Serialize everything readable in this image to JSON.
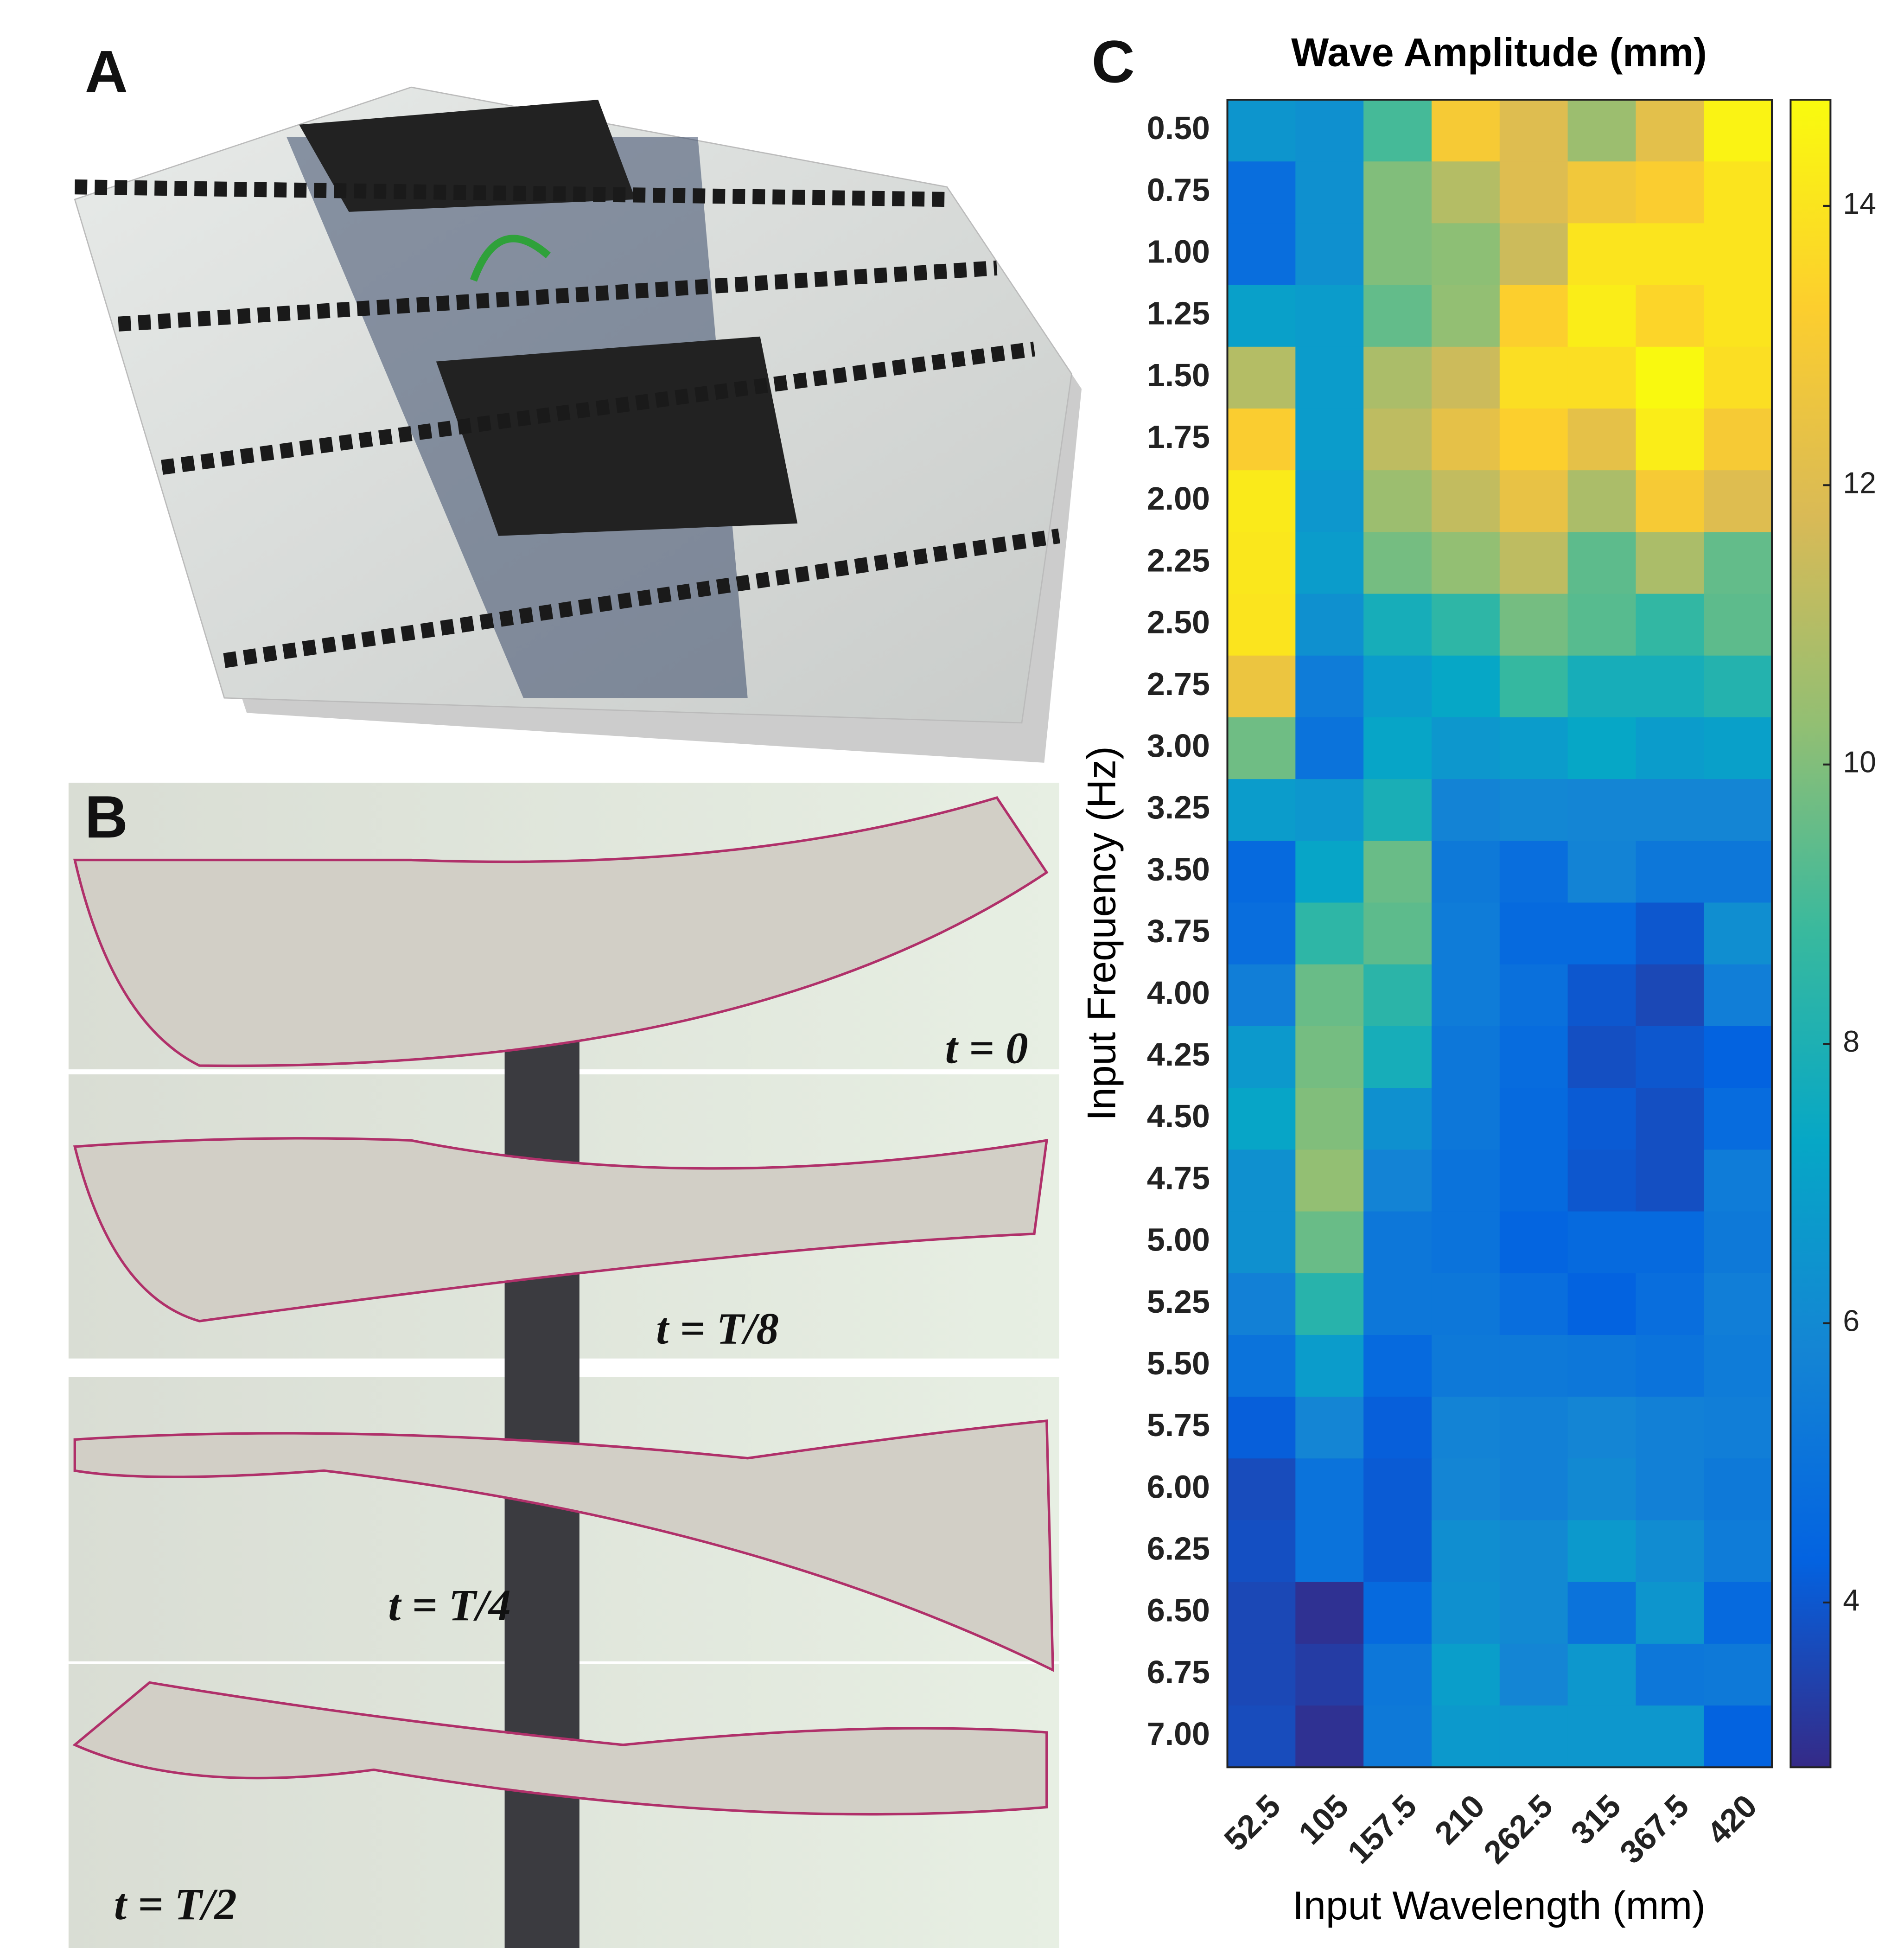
{
  "panels": {
    "a": {
      "label": "A"
    },
    "b": {
      "label": "B",
      "frames": [
        "t = 0",
        "t = T/8",
        "t = T/4",
        "t = T/2"
      ]
    },
    "c": {
      "label": "C"
    }
  },
  "chart_data": {
    "type": "heatmap",
    "title": "Wave Amplitude (mm)",
    "xlabel": "Input Wavelength (mm)",
    "ylabel": "Input Frequency (Hz)",
    "x": [
      "52.5",
      "105",
      "157.5",
      "210",
      "262.5",
      "315",
      "367.5",
      "420"
    ],
    "y": [
      "0.50",
      "0.75",
      "1.00",
      "1.25",
      "1.50",
      "1.75",
      "2.00",
      "2.25",
      "2.50",
      "2.75",
      "3.00",
      "3.25",
      "3.50",
      "3.75",
      "4.00",
      "4.25",
      "4.50",
      "4.75",
      "5.00",
      "5.25",
      "5.50",
      "5.75",
      "6.00",
      "6.25",
      "6.50",
      "6.75",
      "7.00"
    ],
    "values": [
      [
        6.5,
        6.3,
        9.0,
        13.0,
        12.0,
        10.5,
        12.2,
        14.5
      ],
      [
        4.8,
        6.3,
        10.0,
        11.0,
        12.0,
        12.8,
        13.2,
        14.0
      ],
      [
        4.8,
        6.3,
        10.0,
        10.2,
        11.5,
        14.0,
        14.0,
        14.0
      ],
      [
        7.0,
        6.8,
        9.5,
        10.3,
        13.3,
        14.3,
        13.5,
        14.0
      ],
      [
        11.0,
        6.8,
        10.8,
        11.5,
        13.8,
        13.8,
        14.7,
        13.8
      ],
      [
        13.2,
        6.8,
        11.2,
        12.3,
        13.3,
        12.3,
        14.3,
        13.0
      ],
      [
        14.2,
        6.6,
        10.5,
        11.3,
        12.4,
        10.8,
        13.0,
        12.0
      ],
      [
        14.1,
        6.8,
        9.8,
        10.3,
        11.2,
        9.4,
        10.8,
        9.5
      ],
      [
        14.0,
        6.3,
        7.8,
        8.5,
        9.8,
        9.3,
        8.6,
        9.4
      ],
      [
        12.6,
        5.4,
        6.8,
        7.3,
        8.7,
        7.8,
        7.8,
        8.2
      ],
      [
        9.7,
        5.0,
        7.2,
        6.6,
        6.8,
        7.3,
        6.8,
        7.0
      ],
      [
        6.8,
        6.6,
        7.9,
        5.7,
        5.9,
        5.8,
        5.8,
        5.8
      ],
      [
        4.6,
        7.2,
        9.6,
        5.3,
        4.8,
        5.7,
        5.2,
        5.2
      ],
      [
        4.8,
        8.5,
        9.4,
        5.4,
        4.6,
        4.6,
        4.0,
        6.2
      ],
      [
        5.5,
        9.6,
        8.4,
        5.4,
        4.9,
        4.0,
        3.6,
        5.5
      ],
      [
        6.7,
        9.8,
        7.8,
        5.2,
        4.7,
        3.8,
        4.0,
        4.3
      ],
      [
        7.2,
        10.0,
        6.3,
        5.2,
        4.6,
        4.1,
        3.8,
        4.7
      ],
      [
        6.3,
        10.3,
        5.7,
        5.0,
        4.6,
        4.0,
        3.8,
        5.4
      ],
      [
        6.3,
        9.6,
        5.2,
        5.0,
        4.4,
        4.6,
        4.6,
        5.3
      ],
      [
        5.6,
        8.3,
        5.2,
        5.2,
        4.8,
        4.3,
        4.8,
        5.5
      ],
      [
        5.0,
        6.8,
        4.6,
        5.3,
        5.3,
        5.2,
        5.0,
        5.4
      ],
      [
        4.2,
        5.8,
        4.2,
        5.7,
        5.6,
        5.8,
        5.6,
        5.5
      ],
      [
        3.7,
        5.0,
        4.1,
        5.8,
        5.6,
        6.0,
        5.6,
        5.3
      ],
      [
        3.8,
        5.0,
        4.1,
        6.2,
        6.0,
        6.7,
        6.1,
        5.4
      ],
      [
        3.6,
        3.0,
        4.6,
        6.3,
        6.0,
        5.0,
        6.5,
        4.6
      ],
      [
        3.6,
        3.3,
        5.2,
        6.9,
        5.8,
        6.6,
        5.2,
        5.3
      ],
      [
        3.7,
        3.0,
        5.3,
        6.7,
        6.6,
        6.6,
        6.6,
        4.3
      ]
    ],
    "colormap": "parula",
    "clim": [
      2.82,
      14.76
    ],
    "cticks": [
      4,
      6,
      8,
      10,
      12,
      14
    ]
  }
}
